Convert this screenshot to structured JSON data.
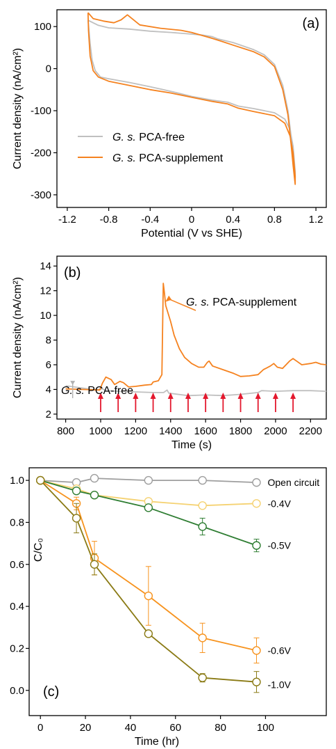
{
  "chart_data": [
    {
      "panel_label": "(a)",
      "type": "line",
      "xlabel": "Potential (V vs SHE)",
      "ylabel": "Current density (nA/cm²)",
      "xlim": [
        -1.3,
        1.3
      ],
      "ylim": [
        -330,
        140
      ],
      "xticks": [
        "-1.2",
        "-0.8",
        "-0.4",
        "0",
        "0.4",
        "0.8",
        "1.2"
      ],
      "yticks": [
        "100",
        "0",
        "-100",
        "-200",
        "-300"
      ],
      "legend_location": "lower-left",
      "series": [
        {
          "name": "G. s. PCA-free",
          "color": "#c0c0c0",
          "points": [
            [
              -1.0,
              115
            ],
            [
              -0.9,
              103
            ],
            [
              -0.8,
              97
            ],
            [
              -0.6,
              94
            ],
            [
              -0.4,
              89
            ],
            [
              -0.2,
              86
            ],
            [
              0.0,
              82
            ],
            [
              0.1,
              80
            ],
            [
              0.2,
              76
            ],
            [
              0.25,
              71
            ],
            [
              0.4,
              62
            ],
            [
              0.6,
              45
            ],
            [
              0.7,
              33
            ],
            [
              0.8,
              10
            ],
            [
              0.88,
              -40
            ],
            [
              0.93,
              -100
            ],
            [
              0.96,
              -160
            ],
            [
              0.98,
              -210
            ],
            [
              1.0,
              -260
            ],
            [
              1.0,
              -245
            ],
            [
              0.98,
              -185
            ],
            [
              0.95,
              -145
            ],
            [
              0.9,
              -120
            ],
            [
              0.8,
              -105
            ],
            [
              0.6,
              -95
            ],
            [
              0.45,
              -89
            ],
            [
              0.35,
              -80
            ],
            [
              0.2,
              -75
            ],
            [
              0.0,
              -66
            ],
            [
              -0.2,
              -54
            ],
            [
              -0.4,
              -43
            ],
            [
              -0.6,
              -33
            ],
            [
              -0.8,
              -24
            ],
            [
              -0.88,
              -20
            ],
            [
              -0.93,
              -5
            ],
            [
              -0.96,
              20
            ],
            [
              -0.98,
              60
            ],
            [
              -0.995,
              105
            ],
            [
              -1.0,
              115
            ]
          ]
        },
        {
          "name": "G. s. PCA-supplement",
          "color": "#f5821f",
          "points": [
            [
              -1.0,
              133
            ],
            [
              -0.95,
              119
            ],
            [
              -0.85,
              113
            ],
            [
              -0.75,
              109
            ],
            [
              -0.68,
              116
            ],
            [
              -0.62,
              128
            ],
            [
              -0.57,
              118
            ],
            [
              -0.5,
              104
            ],
            [
              -0.3,
              96
            ],
            [
              -0.1,
              91
            ],
            [
              0.0,
              86
            ],
            [
              0.1,
              79
            ],
            [
              0.2,
              72
            ],
            [
              0.3,
              64
            ],
            [
              0.4,
              56
            ],
            [
              0.6,
              40
            ],
            [
              0.7,
              28
            ],
            [
              0.8,
              5
            ],
            [
              0.88,
              -50
            ],
            [
              0.93,
              -110
            ],
            [
              0.96,
              -180
            ],
            [
              0.98,
              -230
            ],
            [
              1.0,
              -275
            ],
            [
              1.0,
              -255
            ],
            [
              0.98,
              -200
            ],
            [
              0.95,
              -160
            ],
            [
              0.9,
              -130
            ],
            [
              0.8,
              -112
            ],
            [
              0.6,
              -102
            ],
            [
              0.45,
              -94
            ],
            [
              0.35,
              -84
            ],
            [
              0.2,
              -78
            ],
            [
              0.0,
              -68
            ],
            [
              -0.2,
              -58
            ],
            [
              -0.4,
              -50
            ],
            [
              -0.6,
              -40
            ],
            [
              -0.8,
              -30
            ],
            [
              -0.9,
              -20
            ],
            [
              -0.95,
              -5
            ],
            [
              -0.98,
              30
            ],
            [
              -0.995,
              90
            ],
            [
              -1.0,
              133
            ]
          ]
        }
      ]
    },
    {
      "panel_label": "(b)",
      "type": "line",
      "xlabel": "Time (s)",
      "ylabel": "Current density (nA/cm²)",
      "xlim": [
        750,
        2290
      ],
      "ylim": [
        1.6,
        14.8
      ],
      "xticks": [
        "800",
        "1000",
        "1200",
        "1400",
        "1600",
        "1800",
        "2000",
        "2200"
      ],
      "yticks": [
        "2",
        "4",
        "6",
        "8",
        "10",
        "12",
        "14"
      ],
      "annotations": [
        {
          "text": "G. s. PCA-supplement",
          "arrow_to": [
            1370,
            11.1
          ]
        },
        {
          "text": "G. s. PCA-free",
          "arrow_to": [
            840,
            4.3
          ]
        }
      ],
      "injection_arrows_x": [
        1000,
        1100,
        1200,
        1300,
        1400,
        1500,
        1600,
        1700,
        1800,
        1900,
        2000,
        2100
      ],
      "arrow_color": "#e3182d",
      "series": [
        {
          "name": "G. s. PCA-free",
          "color": "#c0c0c0",
          "points": [
            [
              800,
              4.3
            ],
            [
              850,
              4.2
            ],
            [
              900,
              4.1
            ],
            [
              950,
              4.0
            ],
            [
              990,
              4.0
            ],
            [
              1010,
              4.05
            ],
            [
              1030,
              3.9
            ],
            [
              1100,
              3.85
            ],
            [
              1200,
              3.8
            ],
            [
              1300,
              3.75
            ],
            [
              1360,
              3.75
            ],
            [
              1380,
              3.95
            ],
            [
              1390,
              3.7
            ],
            [
              1500,
              3.5
            ],
            [
              1600,
              3.55
            ],
            [
              1700,
              3.5
            ],
            [
              1800,
              3.6
            ],
            [
              1900,
              3.75
            ],
            [
              1920,
              3.9
            ],
            [
              2000,
              3.85
            ],
            [
              2100,
              3.9
            ],
            [
              2200,
              3.9
            ],
            [
              2290,
              3.85
            ]
          ]
        },
        {
          "name": "G. s. PCA-supplement",
          "color": "#f5821f",
          "points": [
            [
              800,
              4.05
            ],
            [
              900,
              4.0
            ],
            [
              995,
              3.95
            ],
            [
              1010,
              4.5
            ],
            [
              1030,
              5.0
            ],
            [
              1060,
              4.8
            ],
            [
              1080,
              4.4
            ],
            [
              1110,
              4.65
            ],
            [
              1130,
              4.55
            ],
            [
              1160,
              4.2
            ],
            [
              1200,
              4.25
            ],
            [
              1250,
              4.35
            ],
            [
              1290,
              4.4
            ],
            [
              1300,
              4.6
            ],
            [
              1330,
              4.7
            ],
            [
              1350,
              5.2
            ],
            [
              1358,
              12.6
            ],
            [
              1365,
              11.8
            ],
            [
              1372,
              10.8
            ],
            [
              1400,
              9.5
            ],
            [
              1420,
              8.4
            ],
            [
              1450,
              7.3
            ],
            [
              1480,
              6.6
            ],
            [
              1520,
              6.1
            ],
            [
              1560,
              5.8
            ],
            [
              1590,
              5.8
            ],
            [
              1610,
              6.2
            ],
            [
              1620,
              6.3
            ],
            [
              1640,
              5.9
            ],
            [
              1700,
              5.6
            ],
            [
              1760,
              5.3
            ],
            [
              1800,
              5.05
            ],
            [
              1850,
              5.1
            ],
            [
              1900,
              5.2
            ],
            [
              1930,
              5.6
            ],
            [
              1970,
              5.9
            ],
            [
              1990,
              6.1
            ],
            [
              2010,
              5.8
            ],
            [
              2040,
              5.7
            ],
            [
              2080,
              6.3
            ],
            [
              2100,
              6.5
            ],
            [
              2120,
              6.3
            ],
            [
              2150,
              6.0
            ],
            [
              2200,
              6.1
            ],
            [
              2230,
              6.2
            ],
            [
              2260,
              6.05
            ],
            [
              2290,
              6.0
            ]
          ]
        }
      ]
    },
    {
      "panel_label": "(c)",
      "type": "line",
      "xlabel": "Time (hr)",
      "ylabel": "C/C₀",
      "xlim": [
        -5,
        127
      ],
      "ylim": [
        -0.12,
        1.06
      ],
      "xticks": [
        "0",
        "20",
        "40",
        "60",
        "80",
        "100"
      ],
      "yticks": [
        "1.0",
        "0.8",
        "0.6",
        "0.4",
        "0.2",
        "0.0"
      ],
      "x": [
        0,
        16,
        24,
        48,
        72,
        96
      ],
      "series": [
        {
          "name": "Open circuit",
          "color": "#9e9e9e",
          "values": [
            1.0,
            0.99,
            1.01,
            1.0,
            1.0,
            0.99
          ],
          "errors": [
            0,
            0.01,
            0.01,
            0.01,
            0.01,
            0.01
          ]
        },
        {
          "name": "-0.4V",
          "color": "#f5d272",
          "values": [
            1.0,
            0.96,
            0.93,
            0.9,
            0.88,
            0.89
          ],
          "errors": [
            0,
            0.01,
            0.01,
            0.01,
            0.01,
            0.01
          ]
        },
        {
          "name": "-0.5V",
          "color": "#2e7d32",
          "values": [
            1.0,
            0.95,
            0.93,
            0.87,
            0.78,
            0.69
          ],
          "errors": [
            0,
            0.01,
            0.01,
            0.01,
            0.04,
            0.03
          ]
        },
        {
          "name": "-0.6V",
          "color": "#f7931e",
          "values": [
            1.0,
            0.89,
            0.63,
            0.45,
            0.25,
            0.19
          ],
          "errors": [
            0,
            0.03,
            0.08,
            0.14,
            0.07,
            0.06
          ]
        },
        {
          "name": "-1.0V",
          "color": "#8a7a14",
          "values": [
            1.0,
            0.82,
            0.6,
            0.27,
            0.06,
            0.04
          ],
          "errors": [
            0,
            0.07,
            0.05,
            0.01,
            0.02,
            0.05
          ]
        }
      ]
    }
  ]
}
